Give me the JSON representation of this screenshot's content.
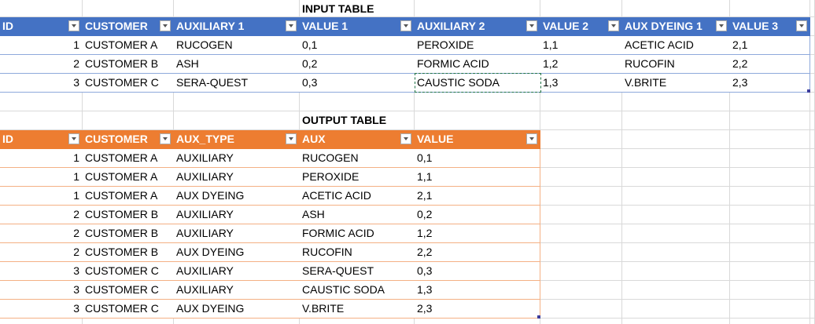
{
  "input_table": {
    "title": "INPUT TABLE",
    "headers": [
      "ID",
      "CUSTOMER",
      "AUXILIARY 1",
      "VALUE 1",
      "AUXILIARY 2",
      "VALUE 2",
      "AUX DYEING 1",
      "VALUE 3"
    ],
    "rows": [
      [
        1,
        "CUSTOMER A",
        "RUCOGEN",
        "0,1",
        "PEROXIDE",
        "1,1",
        "ACETIC ACID",
        "2,1"
      ],
      [
        2,
        "CUSTOMER B",
        "ASH",
        "0,2",
        "FORMIC ACID",
        "1,2",
        "RUCOFIN",
        "2,2"
      ],
      [
        3,
        "CUSTOMER C",
        "SERA-QUEST",
        "0,3",
        "CAUSTIC SODA",
        "1,3",
        "V.BRITE",
        "2,3"
      ]
    ]
  },
  "output_table": {
    "title": "OUTPUT TABLE",
    "headers": [
      "ID",
      "CUSTOMER",
      "AUX_TYPE",
      "AUX",
      "VALUE"
    ],
    "rows": [
      [
        1,
        "CUSTOMER A",
        "AUXILIARY",
        "RUCOGEN",
        "0,1"
      ],
      [
        1,
        "CUSTOMER A",
        "AUXILIARY",
        "PEROXIDE",
        "1,1"
      ],
      [
        1,
        "CUSTOMER A",
        "AUX DYEING",
        "ACETIC ACID",
        "2,1"
      ],
      [
        2,
        "CUSTOMER B",
        "AUXILIARY",
        "ASH",
        "0,2"
      ],
      [
        2,
        "CUSTOMER B",
        "AUXILIARY",
        "FORMIC ACID",
        "1,2"
      ],
      [
        2,
        "CUSTOMER B",
        "AUX DYEING",
        "RUCOFIN",
        "2,2"
      ],
      [
        3,
        "CUSTOMER C",
        "AUXILIARY",
        "SERA-QUEST",
        "0,3"
      ],
      [
        3,
        "CUSTOMER C",
        "AUXILIARY",
        "CAUSTIC SODA",
        "1,3"
      ],
      [
        3,
        "CUSTOMER C",
        "AUX DYEING",
        "V.BRITE",
        "2,3"
      ]
    ]
  }
}
